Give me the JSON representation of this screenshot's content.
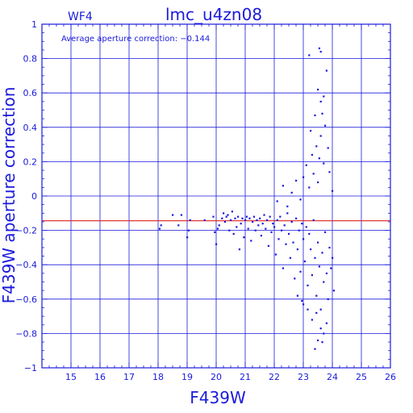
{
  "panel_label": "WF4",
  "chart_data": {
    "type": "scatter",
    "title": "lmc_u4zn08",
    "xlabel": "F439W",
    "ylabel": "F439W aperture correction",
    "annotation": "Average aperture correction: −0.144",
    "xlim": [
      14,
      26
    ],
    "ylim": [
      -1,
      1
    ],
    "xticks": [
      15,
      16,
      17,
      18,
      19,
      20,
      21,
      22,
      23,
      24,
      25,
      26
    ],
    "yticks": [
      -1,
      -0.8,
      -0.6,
      -0.4,
      -0.2,
      0,
      0.2,
      0.4,
      0.6,
      0.8,
      1
    ],
    "ytick_labels": [
      "−1",
      "−0.8",
      "−0.6",
      "−0.4",
      "−0.2",
      "0",
      "0.2",
      "0.4",
      "0.6",
      "0.8",
      "1"
    ],
    "grid": true,
    "reference_line": {
      "y": -0.144,
      "color": "#e02020"
    },
    "colors": {
      "axes": "#1a1adc",
      "points": "#1a1adc"
    },
    "series": [
      {
        "points": [
          [
            18.05,
            -0.19
          ],
          [
            18.1,
            -0.17
          ],
          [
            18.5,
            -0.11
          ],
          [
            18.7,
            -0.17
          ],
          [
            18.8,
            -0.11
          ],
          [
            19.0,
            -0.24
          ],
          [
            19.05,
            -0.2
          ],
          [
            19.1,
            -0.14
          ],
          [
            19.6,
            -0.14
          ],
          [
            19.9,
            -0.12
          ],
          [
            19.95,
            -0.21
          ],
          [
            20.0,
            -0.28
          ],
          [
            20.05,
            -0.19
          ],
          [
            20.1,
            -0.17
          ],
          [
            20.2,
            -0.13
          ],
          [
            20.25,
            -0.1
          ],
          [
            20.3,
            -0.15
          ],
          [
            20.35,
            -0.12
          ],
          [
            20.4,
            -0.11
          ],
          [
            20.45,
            -0.2
          ],
          [
            20.5,
            -0.14
          ],
          [
            20.55,
            -0.09
          ],
          [
            20.6,
            -0.22
          ],
          [
            20.65,
            -0.13
          ],
          [
            20.7,
            -0.18
          ],
          [
            20.75,
            -0.12
          ],
          [
            20.8,
            -0.31
          ],
          [
            20.85,
            -0.16
          ],
          [
            20.9,
            -0.13
          ],
          [
            20.95,
            -0.24
          ],
          [
            21.0,
            -0.14
          ],
          [
            21.05,
            -0.12
          ],
          [
            21.1,
            -0.19
          ],
          [
            21.15,
            -0.13
          ],
          [
            21.2,
            -0.26
          ],
          [
            21.25,
            -0.15
          ],
          [
            21.3,
            -0.12
          ],
          [
            21.35,
            -0.2
          ],
          [
            21.4,
            -0.14
          ],
          [
            21.45,
            -0.17
          ],
          [
            21.5,
            -0.13
          ],
          [
            21.55,
            -0.23
          ],
          [
            21.6,
            -0.16
          ],
          [
            21.65,
            -0.11
          ],
          [
            21.7,
            -0.19
          ],
          [
            21.75,
            -0.14
          ],
          [
            21.8,
            -0.29
          ],
          [
            21.85,
            -0.12
          ],
          [
            21.9,
            -0.21
          ],
          [
            21.95,
            -0.16
          ],
          [
            22.0,
            -0.18
          ],
          [
            22.05,
            -0.34
          ],
          [
            22.1,
            -0.14
          ],
          [
            22.15,
            -0.25
          ],
          [
            22.2,
            -0.12
          ],
          [
            22.25,
            -0.2
          ],
          [
            22.3,
            -0.42
          ],
          [
            22.35,
            -0.17
          ],
          [
            22.4,
            -0.28
          ],
          [
            22.45,
            -0.1
          ],
          [
            22.5,
            -0.22
          ],
          [
            22.55,
            -0.36
          ],
          [
            22.6,
            -0.15
          ],
          [
            22.65,
            -0.27
          ],
          [
            22.7,
            -0.48
          ],
          [
            22.75,
            -0.13
          ],
          [
            22.8,
            -0.31
          ],
          [
            22.85,
            -0.2
          ],
          [
            22.9,
            -0.44
          ],
          [
            22.95,
            -0.16
          ],
          [
            23.0,
            -0.25
          ],
          [
            23.05,
            -0.38
          ],
          [
            23.1,
            -0.18
          ],
          [
            23.15,
            -0.52
          ],
          [
            23.2,
            -0.22
          ],
          [
            23.25,
            -0.31
          ],
          [
            23.3,
            -0.46
          ],
          [
            23.35,
            -0.14
          ],
          [
            23.4,
            -0.36
          ],
          [
            23.45,
            -0.58
          ],
          [
            23.5,
            -0.27
          ],
          [
            23.55,
            -0.41
          ],
          [
            23.6,
            -0.66
          ],
          [
            23.65,
            -0.33
          ],
          [
            23.7,
            -0.5
          ],
          [
            23.75,
            -0.21
          ],
          [
            23.8,
            -0.45
          ],
          [
            23.85,
            -0.6
          ],
          [
            23.9,
            -0.3
          ],
          [
            23.95,
            -0.42
          ],
          [
            24.0,
            -0.36
          ],
          [
            24.05,
            -0.55
          ],
          [
            22.1,
            -0.03
          ],
          [
            22.3,
            0.06
          ],
          [
            22.45,
            -0.06
          ],
          [
            22.6,
            0.02
          ],
          [
            22.75,
            0.09
          ],
          [
            22.9,
            -0.02
          ],
          [
            23.0,
            0.11
          ],
          [
            23.1,
            0.18
          ],
          [
            23.2,
            0.05
          ],
          [
            23.3,
            0.24
          ],
          [
            23.35,
            0.13
          ],
          [
            23.45,
            0.29
          ],
          [
            23.5,
            0.08
          ],
          [
            23.55,
            0.22
          ],
          [
            23.6,
            0.35
          ],
          [
            23.7,
            0.19
          ],
          [
            23.75,
            0.41
          ],
          [
            23.85,
            0.28
          ],
          [
            23.9,
            0.14
          ],
          [
            24.0,
            0.03
          ],
          [
            23.25,
            0.38
          ],
          [
            23.4,
            0.47
          ],
          [
            23.6,
            0.55
          ],
          [
            23.5,
            0.62
          ],
          [
            23.7,
            0.58
          ],
          [
            23.8,
            0.73
          ],
          [
            23.65,
            0.48
          ],
          [
            23.2,
            0.82
          ],
          [
            23.55,
            0.86
          ],
          [
            23.6,
            0.84
          ],
          [
            22.8,
            -0.58
          ],
          [
            23.0,
            -0.63
          ],
          [
            23.3,
            -0.72
          ],
          [
            23.45,
            -0.68
          ],
          [
            23.6,
            -0.77
          ],
          [
            23.7,
            -0.8
          ],
          [
            23.5,
            -0.84
          ],
          [
            23.4,
            -0.89
          ],
          [
            23.65,
            -0.85
          ],
          [
            23.8,
            -0.74
          ],
          [
            22.95,
            -0.61
          ],
          [
            23.15,
            -0.66
          ]
        ]
      }
    ]
  }
}
